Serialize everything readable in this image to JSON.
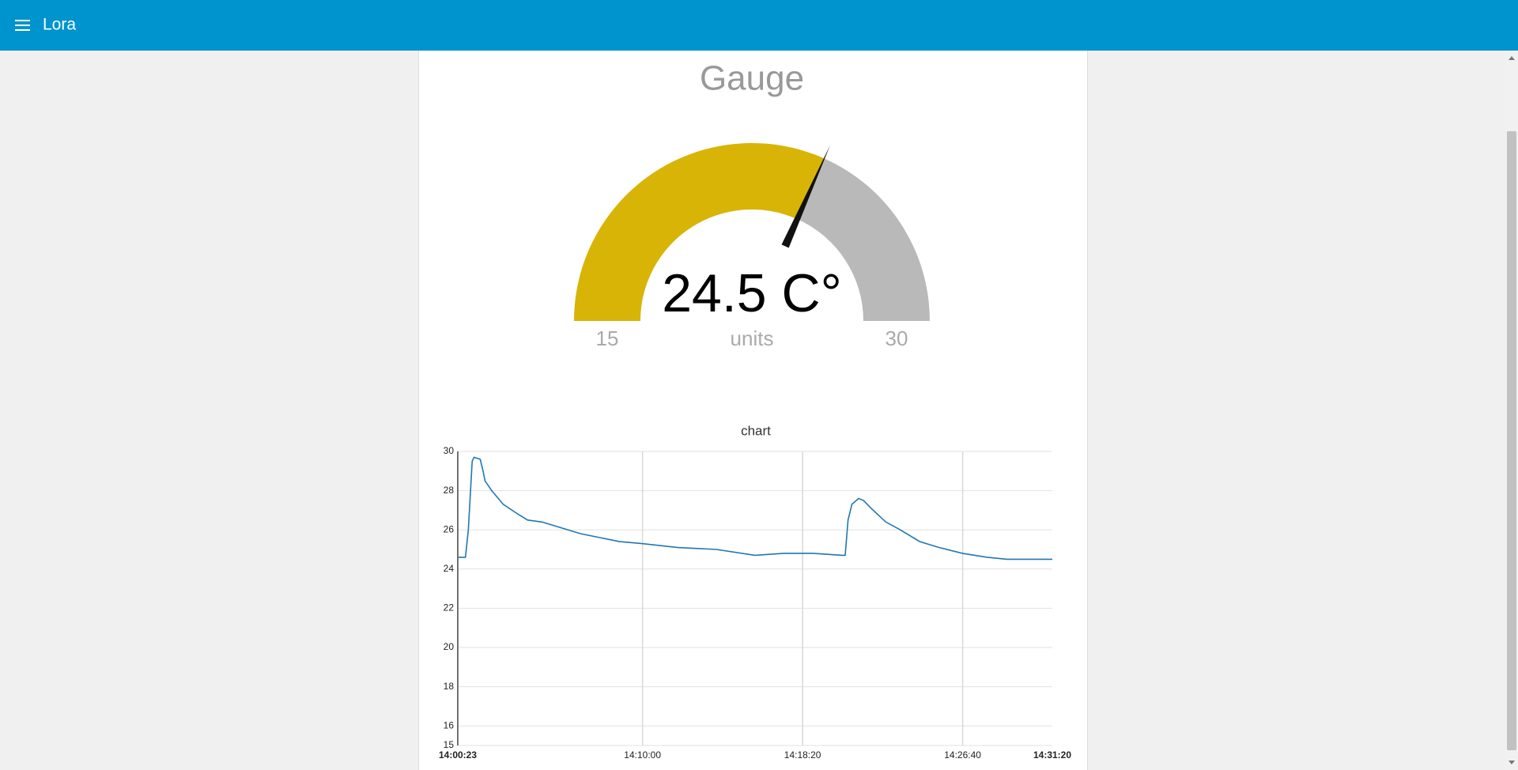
{
  "header": {
    "title": "Lora"
  },
  "chart_data": [
    {
      "type": "gauge",
      "title": "Gauge",
      "values": [
        24.5
      ],
      "value_labels": [
        "24.5 C°"
      ],
      "units": "units",
      "ylim": [
        15,
        30
      ],
      "yticks": [
        15,
        30
      ],
      "colors": [
        "#d8b406",
        "#b9b9b9"
      ],
      "needle_color": "#111111"
    },
    {
      "type": "line",
      "title": "chart",
      "color": "#1f77b4",
      "grid": true,
      "x": [
        "14:00:23",
        "14:00:47",
        "14:00:56",
        "14:01:08",
        "14:01:14",
        "14:01:33",
        "14:01:42",
        "14:01:48",
        "14:02:09",
        "14:02:45",
        "14:03:31",
        "14:04:01",
        "14:04:46",
        "14:05:47",
        "14:06:47",
        "14:07:48",
        "14:08:48",
        "14:09:58",
        "14:11:50",
        "14:13:51",
        "14:15:51",
        "14:17:22",
        "14:18:53",
        "14:20:24",
        "14:20:33",
        "14:20:42",
        "14:20:54",
        "14:21:15",
        "14:21:30",
        "14:21:54",
        "14:22:40",
        "14:23:25",
        "14:24:26",
        "14:25:26",
        "14:26:39",
        "14:27:57",
        "14:28:58",
        "14:31:20"
      ],
      "values": [
        24.6,
        24.6,
        26,
        29.5,
        29.7,
        29.6,
        29,
        28.5,
        28,
        27.3,
        26.8,
        26.5,
        26.4,
        26.1,
        25.8,
        25.6,
        25.4,
        25.3,
        25.1,
        25.0,
        24.7,
        24.8,
        24.8,
        24.7,
        24.7,
        26.5,
        27.3,
        27.6,
        27.5,
        27.1,
        26.4,
        26,
        25.4,
        25.1,
        24.8,
        24.6,
        24.5,
        24.5
      ],
      "xlim": [
        "14:00:23",
        "14:31:20"
      ],
      "xticks": [
        "14:00:23",
        "14:10:00",
        "14:18:20",
        "14:26:40",
        "14:31:20"
      ],
      "ylim": [
        15,
        30
      ],
      "yticks": [
        15,
        16,
        18,
        20,
        22,
        24,
        26,
        28,
        30
      ]
    }
  ]
}
